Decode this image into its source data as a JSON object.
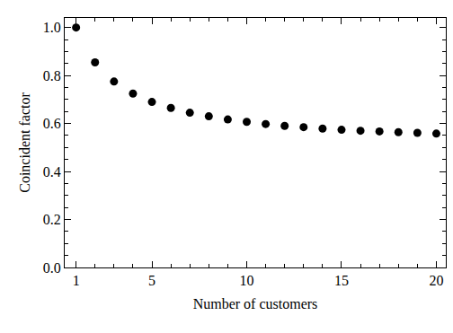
{
  "chart_data": {
    "type": "scatter",
    "x_label": "Number of customers",
    "y_label": "Coincident factor",
    "x": [
      1,
      2,
      3,
      4,
      5,
      6,
      7,
      8,
      9,
      10,
      11,
      12,
      13,
      14,
      15,
      16,
      17,
      18,
      19,
      20
    ],
    "values": [
      1.0,
      0.855,
      0.775,
      0.725,
      0.69,
      0.665,
      0.645,
      0.63,
      0.617,
      0.607,
      0.598,
      0.59,
      0.585,
      0.579,
      0.574,
      0.57,
      0.567,
      0.564,
      0.561,
      0.558
    ],
    "color": "#000000",
    "marker": "circle",
    "xlim": [
      0.4,
      20.5
    ],
    "xticks": [
      1,
      5,
      10,
      15,
      20
    ],
    "ylim": [
      0,
      1.04
    ],
    "yticks": [
      {
        "value": 0,
        "label": "0.0"
      },
      {
        "value": 0.2,
        "label": "0.2"
      },
      {
        "value": 0.4,
        "label": "0.4"
      },
      {
        "value": 0.6,
        "label": "0.6"
      },
      {
        "value": 0.8,
        "label": "0.8"
      },
      {
        "value": 1,
        "label": "1.0"
      }
    ],
    "grid": false
  }
}
